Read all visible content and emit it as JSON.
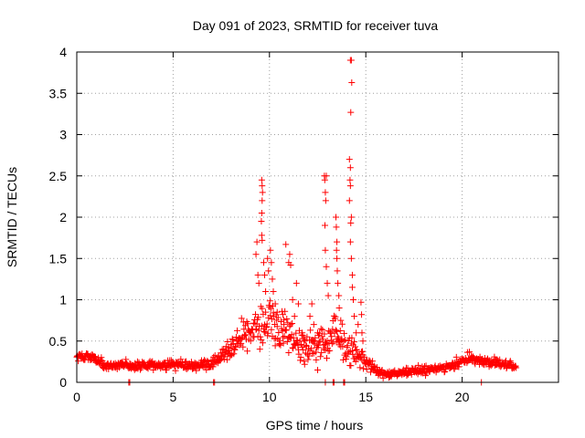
{
  "chart_data": {
    "type": "scatter",
    "title": "Day 091 of 2023, SRMTID for receiver tuva",
    "xlabel": "GPS time / hours",
    "ylabel": "SRMTID / TECUs",
    "xlim": [
      0,
      25
    ],
    "ylim": [
      0,
      4
    ],
    "x_ticks": [
      0,
      5,
      10,
      15,
      20
    ],
    "x_tick_labels": [
      "0",
      "5",
      "10",
      "15",
      "20"
    ],
    "y_ticks": [
      0,
      0.5,
      1,
      1.5,
      2,
      2.5,
      3,
      3.5,
      4
    ],
    "y_tick_labels": [
      "0",
      "0.5",
      "1",
      "1.5",
      "2",
      "2.5",
      "3",
      "3.5",
      "4"
    ],
    "grid": true,
    "marker": "plus",
    "series_color": "#ff0000",
    "baseline_profile": {
      "x": [
        0,
        0.5,
        1,
        1.5,
        2,
        3,
        4,
        5,
        6,
        7,
        7.5,
        8,
        8.5,
        9,
        9.5,
        10,
        10.5,
        11,
        11.5,
        12,
        12.5,
        13,
        13.5,
        14,
        14.5,
        15,
        15.5,
        16,
        16.5,
        17,
        18,
        19,
        20,
        20.5,
        21,
        22,
        22.8
      ],
      "y": [
        0.3,
        0.32,
        0.28,
        0.18,
        0.22,
        0.2,
        0.2,
        0.21,
        0.2,
        0.22,
        0.3,
        0.42,
        0.55,
        0.6,
        0.7,
        0.72,
        0.65,
        0.5,
        0.45,
        0.45,
        0.4,
        0.5,
        0.55,
        0.45,
        0.35,
        0.25,
        0.15,
        0.1,
        0.1,
        0.12,
        0.15,
        0.18,
        0.25,
        0.3,
        0.25,
        0.22,
        0.2
      ],
      "spread": [
        0.06,
        0.06,
        0.06,
        0.05,
        0.05,
        0.05,
        0.05,
        0.05,
        0.05,
        0.06,
        0.08,
        0.12,
        0.15,
        0.18,
        0.22,
        0.25,
        0.25,
        0.22,
        0.2,
        0.2,
        0.2,
        0.22,
        0.25,
        0.2,
        0.15,
        0.08,
        0.05,
        0.04,
        0.04,
        0.04,
        0.05,
        0.05,
        0.06,
        0.06,
        0.06,
        0.05,
        0.05
      ],
      "x_start": 0,
      "x_end": 22.8,
      "x_step": 0.025
    },
    "spike_points": [
      {
        "x": 9.3,
        "y": 1.55
      },
      {
        "x": 9.35,
        "y": 1.7
      },
      {
        "x": 9.4,
        "y": 1.3
      },
      {
        "x": 9.45,
        "y": 1.2
      },
      {
        "x": 9.6,
        "y": 2.45
      },
      {
        "x": 9.62,
        "y": 2.38
      },
      {
        "x": 9.64,
        "y": 2.3
      },
      {
        "x": 9.62,
        "y": 2.2
      },
      {
        "x": 9.6,
        "y": 2.05
      },
      {
        "x": 9.58,
        "y": 1.95
      },
      {
        "x": 9.6,
        "y": 1.78
      },
      {
        "x": 9.62,
        "y": 1.72
      },
      {
        "x": 9.7,
        "y": 1.45
      },
      {
        "x": 9.75,
        "y": 1.3
      },
      {
        "x": 9.8,
        "y": 1.1
      },
      {
        "x": 9.9,
        "y": 1.5
      },
      {
        "x": 9.95,
        "y": 1.35
      },
      {
        "x": 10.05,
        "y": 1.6
      },
      {
        "x": 10.1,
        "y": 1.45
      },
      {
        "x": 10.15,
        "y": 1.25
      },
      {
        "x": 10.2,
        "y": 1.1
      },
      {
        "x": 10.3,
        "y": 0.95
      },
      {
        "x": 10.4,
        "y": 0.85
      },
      {
        "x": 10.85,
        "y": 1.67
      },
      {
        "x": 11.0,
        "y": 1.45
      },
      {
        "x": 11.05,
        "y": 1.55
      },
      {
        "x": 11.1,
        "y": 1.42
      },
      {
        "x": 11.2,
        "y": 1.0
      },
      {
        "x": 11.3,
        "y": 0.8
      },
      {
        "x": 11.4,
        "y": 1.2
      },
      {
        "x": 11.5,
        "y": 0.95
      },
      {
        "x": 12.1,
        "y": 0.8
      },
      {
        "x": 12.2,
        "y": 0.95
      },
      {
        "x": 12.3,
        "y": 0.7
      },
      {
        "x": 12.85,
        "y": 2.5
      },
      {
        "x": 12.87,
        "y": 2.45
      },
      {
        "x": 12.95,
        "y": 2.5
      },
      {
        "x": 12.9,
        "y": 2.3
      },
      {
        "x": 12.92,
        "y": 2.2
      },
      {
        "x": 12.88,
        "y": 1.9
      },
      {
        "x": 12.9,
        "y": 1.6
      },
      {
        "x": 12.95,
        "y": 1.4
      },
      {
        "x": 13.0,
        "y": 1.2
      },
      {
        "x": 13.05,
        "y": 1.05
      },
      {
        "x": 13.45,
        "y": 2.0
      },
      {
        "x": 13.47,
        "y": 1.88
      },
      {
        "x": 13.5,
        "y": 1.7
      },
      {
        "x": 13.48,
        "y": 1.6
      },
      {
        "x": 13.5,
        "y": 1.5
      },
      {
        "x": 13.52,
        "y": 1.35
      },
      {
        "x": 13.55,
        "y": 1.2
      },
      {
        "x": 13.6,
        "y": 1.05
      },
      {
        "x": 13.62,
        "y": 0.9
      },
      {
        "x": 13.7,
        "y": 0.75
      },
      {
        "x": 14.2,
        "y": 3.9
      },
      {
        "x": 14.25,
        "y": 3.9
      },
      {
        "x": 14.27,
        "y": 3.63
      },
      {
        "x": 14.22,
        "y": 3.27
      },
      {
        "x": 14.15,
        "y": 2.7
      },
      {
        "x": 14.2,
        "y": 2.6
      },
      {
        "x": 14.18,
        "y": 2.45
      },
      {
        "x": 14.2,
        "y": 2.38
      },
      {
        "x": 14.15,
        "y": 2.2
      },
      {
        "x": 14.25,
        "y": 2.0
      },
      {
        "x": 14.22,
        "y": 1.93
      },
      {
        "x": 14.2,
        "y": 1.7
      },
      {
        "x": 14.25,
        "y": 1.5
      },
      {
        "x": 14.3,
        "y": 1.3
      },
      {
        "x": 14.3,
        "y": 1.15
      },
      {
        "x": 14.35,
        "y": 1.0
      },
      {
        "x": 14.4,
        "y": 0.8
      },
      {
        "x": 14.5,
        "y": 0.6
      },
      {
        "x": 14.6,
        "y": 0.7
      },
      {
        "x": 14.75,
        "y": 0.97
      },
      {
        "x": 14.78,
        "y": 0.82
      },
      {
        "x": 14.8,
        "y": 0.6
      },
      {
        "x": 14.85,
        "y": 0.5
      },
      {
        "x": 10.7,
        "y": 0.82
      },
      {
        "x": 10.75,
        "y": 0.7
      },
      {
        "x": 11.7,
        "y": 0.6
      },
      {
        "x": 11.8,
        "y": 0.5
      },
      {
        "x": 12.5,
        "y": 0.6
      },
      {
        "x": 12.55,
        "y": 0.45
      }
    ],
    "zero_points": [
      {
        "x": 2.7,
        "y": 0
      },
      {
        "x": 2.75,
        "y": 0
      },
      {
        "x": 7.1,
        "y": 0
      },
      {
        "x": 7.15,
        "y": 0
      },
      {
        "x": 12.9,
        "y": 0
      },
      {
        "x": 13.3,
        "y": 0
      },
      {
        "x": 13.35,
        "y": 0
      },
      {
        "x": 13.85,
        "y": 0
      },
      {
        "x": 13.9,
        "y": 0
      },
      {
        "x": 21.0,
        "y": 0
      }
    ]
  }
}
